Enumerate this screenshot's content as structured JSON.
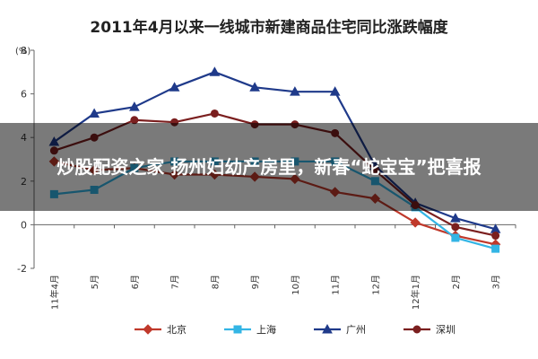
{
  "overlay": {
    "headline": "炒股配资之家 扬州妇幼产房里，新春“蛇宝宝”把喜报"
  },
  "chart_data": {
    "type": "line",
    "title": "2011年4月以来一线城市新建商品住宅同比涨跌幅度",
    "unit": "(%)",
    "categories": [
      "11年4月",
      "5月",
      "6月",
      "7月",
      "8月",
      "9月",
      "10月",
      "11月",
      "12月",
      "12年1月",
      "2月",
      "3月"
    ],
    "ylim": [
      -2,
      8
    ],
    "yticks": [
      -2,
      0,
      2,
      4,
      6,
      8
    ],
    "legend_position": "bottom",
    "grid": false,
    "series": [
      {
        "name": "北京",
        "color": "#c0392b",
        "marker": "diamond",
        "values": [
          2.9,
          2.5,
          2.6,
          2.3,
          2.3,
          2.2,
          2.1,
          1.5,
          1.2,
          0.1,
          -0.5,
          -0.9
        ]
      },
      {
        "name": "上海",
        "color": "#33b5e5",
        "marker": "square",
        "values": [
          1.4,
          1.6,
          2.6,
          2.9,
          2.9,
          2.9,
          2.9,
          2.9,
          2.0,
          0.8,
          -0.6,
          -1.1
        ]
      },
      {
        "name": "广州",
        "color": "#1f3a8a",
        "marker": "triangle",
        "values": [
          3.8,
          5.1,
          5.4,
          6.3,
          7.0,
          6.3,
          6.1,
          6.1,
          2.7,
          1.0,
          0.3,
          -0.2
        ]
      },
      {
        "name": "深圳",
        "color": "#7b1f1f",
        "marker": "circle",
        "values": [
          3.4,
          4.0,
          4.8,
          4.7,
          5.1,
          4.6,
          4.6,
          4.2,
          2.5,
          0.9,
          -0.1,
          -0.5
        ]
      }
    ]
  }
}
